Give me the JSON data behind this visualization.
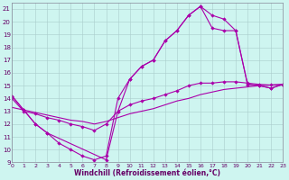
{
  "xlabel": "Windchill (Refroidissement éolien,°C)",
  "bg_color": "#cef5f0",
  "grid_color": "#aacccc",
  "line_color": "#aa00aa",
  "xlim": [
    0,
    23
  ],
  "ylim": [
    9,
    21.5
  ],
  "ytick_min": 9,
  "ytick_max": 21,
  "xtick_min": 0,
  "xtick_max": 23,
  "curve1_x": [
    0,
    1,
    2,
    3,
    4,
    5,
    6,
    7,
    8,
    9,
    10,
    11,
    12,
    13,
    14,
    15,
    16,
    17,
    18,
    19,
    20,
    21,
    22,
    23
  ],
  "curve1_y": [
    14.2,
    13.1,
    12.0,
    11.3,
    10.5,
    10.0,
    9.5,
    9.2,
    9.5,
    14.0,
    15.5,
    16.5,
    17.0,
    18.5,
    19.3,
    20.5,
    21.2,
    20.5,
    20.2,
    19.3,
    15.1,
    15.0,
    14.8,
    15.1
  ],
  "curve2_x": [
    0,
    1,
    2,
    3,
    4,
    5,
    6,
    7,
    8,
    9,
    10,
    11,
    12,
    13,
    14,
    15,
    16,
    17,
    18,
    19,
    20,
    21,
    22,
    23
  ],
  "curve2_y": [
    14.0,
    13.0,
    12.8,
    12.5,
    12.3,
    12.0,
    11.8,
    11.5,
    12.0,
    13.0,
    13.5,
    13.8,
    14.0,
    14.3,
    14.6,
    15.0,
    15.2,
    15.2,
    15.3,
    15.3,
    15.2,
    15.1,
    15.05,
    15.1
  ],
  "curve3_x": [
    0,
    1,
    2,
    3,
    4,
    5,
    6,
    7,
    8,
    9,
    10,
    11,
    12,
    13,
    14,
    15,
    16,
    17,
    18,
    19,
    20,
    21,
    22,
    23
  ],
  "curve3_y": [
    13.3,
    13.1,
    12.9,
    12.7,
    12.5,
    12.3,
    12.2,
    12.0,
    12.2,
    12.5,
    12.8,
    13.0,
    13.2,
    13.5,
    13.8,
    14.0,
    14.3,
    14.5,
    14.7,
    14.8,
    14.9,
    15.0,
    15.05,
    15.1
  ],
  "curve4_x": [
    0,
    1,
    2,
    3,
    8,
    9,
    10,
    11,
    12,
    13,
    14,
    15,
    16,
    17,
    18,
    19,
    20,
    21,
    22,
    23
  ],
  "curve4_y": [
    14.2,
    13.1,
    12.0,
    11.3,
    9.2,
    13.0,
    15.5,
    16.5,
    17.0,
    18.5,
    19.3,
    20.5,
    21.2,
    19.5,
    19.3,
    19.3,
    15.1,
    15.0,
    14.8,
    15.1
  ],
  "xlabel_fontsize": 5.5,
  "tick_fontsize": 4.5,
  "linewidth": 0.8,
  "markersize": 2.2
}
